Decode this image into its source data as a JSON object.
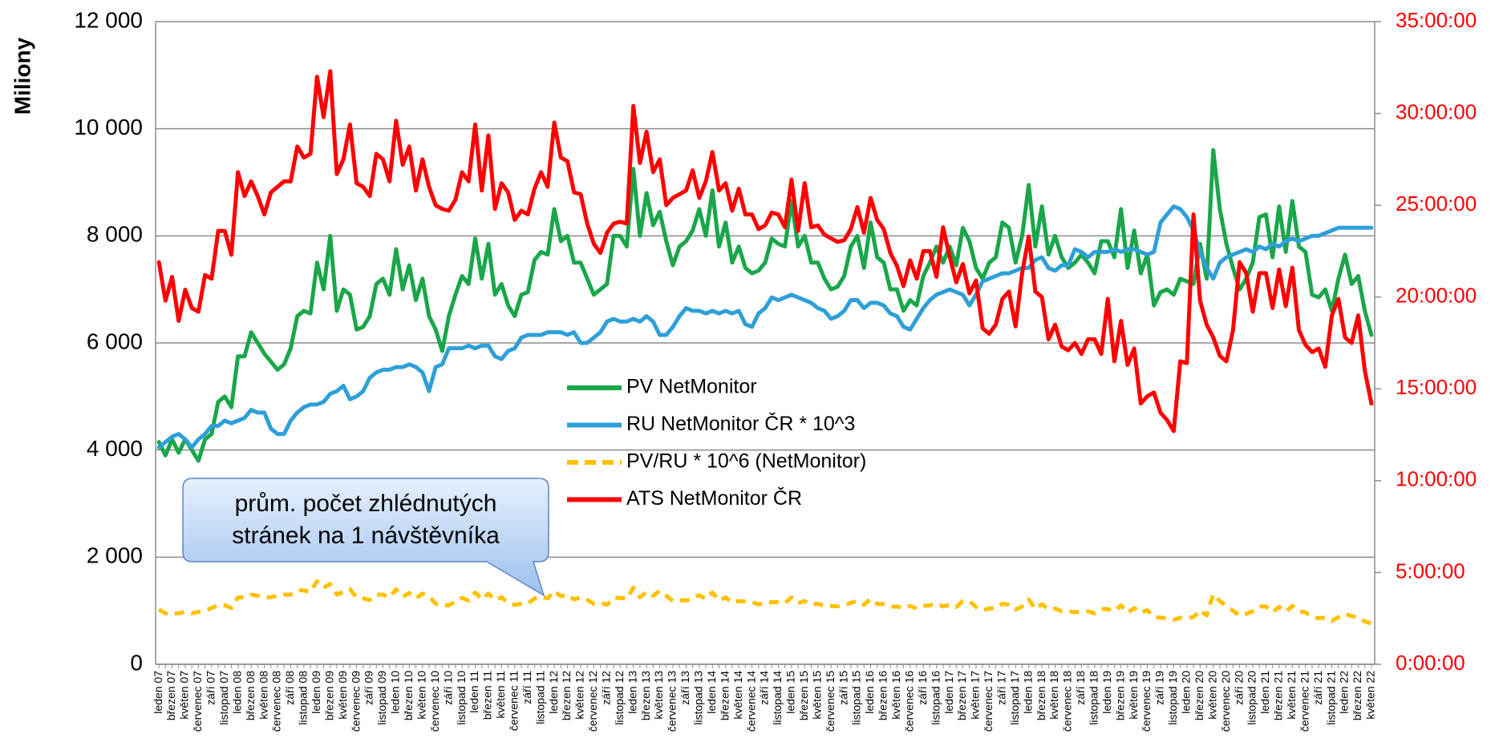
{
  "chart_data": {
    "type": "line",
    "ylabel": "Miliony",
    "ylim": [
      0,
      12000
    ],
    "yticks": [
      0,
      {
        "value": 2000,
        "label": "2 000"
      },
      {
        "value": 4000,
        "label": "4 000"
      },
      {
        "value": 6000,
        "label": "6 000"
      },
      {
        "value": 8000,
        "label": "8 000"
      },
      {
        "value": 10000,
        "label": "10 000"
      },
      {
        "value": 12000,
        "label": "12 000"
      }
    ],
    "y2lim": [
      0,
      35
    ],
    "y2ticks": [
      {
        "value": 0,
        "label": "0:00:00"
      },
      {
        "value": 5,
        "label": "5:00:00"
      },
      {
        "value": 10,
        "label": "10:00:00"
      },
      {
        "value": 15,
        "label": "15:00:00"
      },
      {
        "value": 20,
        "label": "20:00:00"
      },
      {
        "value": 25,
        "label": "25:00:00"
      },
      {
        "value": 30,
        "label": "30:00:00"
      },
      {
        "value": 35,
        "label": "35:00:00"
      }
    ],
    "grid": true,
    "annotation": [
      "prům. počet zhlédnutých",
      "stránek na 1 návštěvníka"
    ],
    "categories": [
      "leden 07",
      null,
      "březen 07",
      null,
      "květen 07",
      null,
      "červenec 07",
      null,
      "září 07",
      null,
      "listopad 07",
      null,
      "leden 08",
      null,
      "březen 08",
      null,
      "květen 08",
      null,
      "červenec 08",
      null,
      "září 08",
      null,
      "listopad 08",
      null,
      "leden 09",
      null,
      "březen 09",
      null,
      "květen 09",
      null,
      "červenec 09",
      null,
      "září 09",
      null,
      "listopad 09",
      null,
      "leden 10",
      null,
      "březen 10",
      null,
      "květen 10",
      null,
      "červenec 10",
      null,
      "září 10",
      null,
      "listopad 10",
      null,
      "leden 11",
      null,
      "březen 11",
      null,
      "květen 11",
      null,
      "červenec 11",
      null,
      "září 11",
      null,
      "listopad 11",
      null,
      "leden 12",
      null,
      "březen 12",
      null,
      "květen 12",
      null,
      "červenec 12",
      null,
      "září 12",
      null,
      "listopad 12",
      null,
      "leden 13",
      null,
      "březen 13",
      null,
      "květen 13",
      null,
      "červenec 13",
      null,
      "září 13",
      null,
      "listopad 13",
      null,
      "leden 14",
      null,
      "březen 14",
      null,
      "květen 14",
      null,
      "červenec 14",
      null,
      "září 14",
      null,
      "listopad 14",
      null,
      "leden 15",
      null,
      "březen 15",
      null,
      "květen 15",
      null,
      "červenec 15",
      null,
      "září 15",
      null,
      "listopad 15",
      null,
      "leden 16",
      null,
      "březen 16",
      null,
      "květen 16",
      null,
      "červenec 16",
      null,
      "září 16",
      null,
      "listopad 16",
      null,
      "leden 17",
      null,
      "březen 17",
      null,
      "květen 17",
      null,
      "červenec 17",
      null,
      "září 17",
      null,
      "listopad 17",
      null,
      "leden 18",
      null,
      "březen 18",
      null,
      "květen 18",
      null,
      "červenec 18",
      null,
      "září 18",
      null,
      "listopad 18",
      null,
      "leden 19",
      null,
      "březen 19",
      null,
      "květen 19",
      null,
      "červenec 19",
      null,
      "září 19",
      null,
      "listopad 19",
      null,
      "leden 20",
      null,
      "březen 20",
      null,
      "květen 20",
      null,
      "červenec 20",
      null,
      "září 20",
      null,
      "listopad 20",
      null,
      "leden 21",
      null,
      "březen 21",
      null,
      "květen 21",
      null,
      "červenec 21",
      null,
      "září 21",
      null,
      "listopad 21",
      null,
      "leden 22",
      null,
      "březen 22",
      null,
      "květen 22"
    ],
    "series": [
      {
        "name": "PV NetMonitor",
        "color": "#1aa64a",
        "values": [
          4150,
          3900,
          4200,
          3950,
          4200,
          4000,
          3800,
          4200,
          4300,
          4900,
          5000,
          4800,
          5750,
          5750,
          6200,
          6000,
          5800,
          5650,
          5500,
          5600,
          5900,
          6500,
          6600,
          6550,
          7500,
          7000,
          8000,
          6600,
          7000,
          6900,
          6250,
          6300,
          6500,
          7100,
          7200,
          6900,
          7750,
          7000,
          7450,
          6800,
          7200,
          6500,
          6250,
          5850,
          6500,
          6900,
          7250,
          7100,
          7950,
          7200,
          7850,
          6900,
          7100,
          6700,
          6500,
          6900,
          6950,
          7550,
          7700,
          7650,
          8500,
          7900,
          8000,
          7500,
          7500,
          7200,
          6900,
          7000,
          7100,
          8000,
          8000,
          7800,
          9250,
          8000,
          8800,
          8200,
          8450,
          7900,
          7450,
          7800,
          7900,
          8100,
          8500,
          8000,
          8850,
          7800,
          8250,
          7500,
          7800,
          7400,
          7300,
          7350,
          7500,
          7950,
          7850,
          7800,
          8650,
          7800,
          8000,
          7500,
          7500,
          7200,
          7000,
          7050,
          7250,
          7800,
          8000,
          7400,
          8250,
          7600,
          7500,
          7000,
          7000,
          6600,
          6800,
          6700,
          7250,
          7500,
          7800,
          7500,
          7800,
          7450,
          8150,
          7900,
          7400,
          7200,
          7500,
          7600,
          8250,
          8150,
          7500,
          8000,
          8950,
          7800,
          8550,
          7650,
          8000,
          7600,
          7400,
          7500,
          7650,
          7500,
          7300,
          7900,
          7900,
          7600,
          8500,
          7400,
          8100,
          7300,
          7650,
          6700,
          6950,
          7000,
          6900,
          7200,
          7150,
          7100,
          7850,
          7200,
          9600,
          8500,
          7850,
          7400,
          7000,
          7200,
          7500,
          8350,
          8400,
          7600,
          8550,
          7700,
          8650,
          7800,
          7700,
          6900,
          6850,
          7000,
          6600,
          7200,
          7650,
          7100,
          7250,
          6600,
          6150
        ]
      },
      {
        "name": "RU NetMonitor ČR * 10^3",
        "color": "#2e9fd8",
        "values": [
          4050,
          4150,
          4250,
          4300,
          4200,
          4050,
          4200,
          4300,
          4450,
          4450,
          4550,
          4500,
          4550,
          4600,
          4750,
          4700,
          4700,
          4400,
          4300,
          4300,
          4550,
          4700,
          4800,
          4850,
          4850,
          4900,
          5050,
          5100,
          5200,
          4950,
          5000,
          5100,
          5350,
          5450,
          5500,
          5500,
          5550,
          5550,
          5600,
          5550,
          5450,
          5100,
          5550,
          5600,
          5900,
          5900,
          5900,
          5950,
          5900,
          5950,
          5950,
          5750,
          5700,
          5850,
          5900,
          6100,
          6150,
          6150,
          6150,
          6200,
          6200,
          6200,
          6150,
          6200,
          6000,
          6000,
          6100,
          6200,
          6400,
          6450,
          6400,
          6400,
          6450,
          6400,
          6500,
          6400,
          6150,
          6150,
          6300,
          6500,
          6650,
          6600,
          6600,
          6550,
          6600,
          6550,
          6600,
          6550,
          6600,
          6350,
          6300,
          6550,
          6650,
          6850,
          6800,
          6850,
          6900,
          6850,
          6800,
          6750,
          6650,
          6600,
          6450,
          6500,
          6600,
          6800,
          6800,
          6650,
          6750,
          6750,
          6700,
          6550,
          6500,
          6300,
          6250,
          6450,
          6650,
          6800,
          6900,
          6950,
          7000,
          6950,
          6900,
          6700,
          6900,
          7150,
          7200,
          7250,
          7300,
          7300,
          7350,
          7400,
          7400,
          7550,
          7600,
          7400,
          7350,
          7450,
          7450,
          7750,
          7700,
          7600,
          7700,
          7700,
          7700,
          7750,
          7700,
          7750,
          7750,
          7700,
          7650,
          7700,
          8250,
          8400,
          8550,
          8500,
          8350,
          8100,
          7700,
          7400,
          7200,
          7500,
          7600,
          7650,
          7700,
          7750,
          7700,
          7800,
          7750,
          7850,
          7800,
          7900,
          7950,
          7900,
          7950,
          8000,
          8000,
          8050,
          8100,
          8150,
          8150,
          8150,
          8150,
          8150,
          8150
        ]
      },
      {
        "name": "PV/RU * 10^6 (NetMonitor)",
        "color": "#ffc000",
        "dashed": true,
        "values": [
          1020,
          950,
          950,
          950,
          980,
          950,
          980,
          1000,
          1050,
          1100,
          1100,
          1050,
          1250,
          1250,
          1300,
          1280,
          1250,
          1250,
          1280,
          1300,
          1300,
          1380,
          1380,
          1350,
          1550,
          1430,
          1500,
          1300,
          1350,
          1400,
          1250,
          1230,
          1200,
          1300,
          1300,
          1250,
          1400,
          1260,
          1330,
          1230,
          1320,
          1270,
          1130,
          1100,
          1100,
          1170,
          1240,
          1190,
          1340,
          1210,
          1320,
          1200,
          1250,
          1150,
          1110,
          1130,
          1130,
          1230,
          1260,
          1230,
          1370,
          1270,
          1300,
          1210,
          1250,
          1200,
          1130,
          1150,
          1110,
          1240,
          1240,
          1220,
          1430,
          1250,
          1350,
          1280,
          1370,
          1280,
          1180,
          1200,
          1190,
          1230,
          1290,
          1220,
          1340,
          1190,
          1250,
          1150,
          1180,
          1170,
          1160,
          1120,
          1130,
          1160,
          1160,
          1140,
          1250,
          1140,
          1180,
          1110,
          1130,
          1090,
          1090,
          1080,
          1100,
          1150,
          1180,
          1110,
          1220,
          1130,
          1120,
          1070,
          1080,
          1050,
          1090,
          1040,
          1090,
          1100,
          1130,
          1080,
          1110,
          1070,
          1180,
          1180,
          1070,
          1010,
          1040,
          1050,
          1130,
          1110,
          1020,
          1080,
          1210,
          1030,
          1120,
          1030,
          1040,
          990,
          990,
          970,
          990,
          990,
          950,
          1030,
          1030,
          990,
          1100,
          960,
          1050,
          960,
          1010,
          880,
          870,
          860,
          830,
          870,
          870,
          880,
          1010,
          910,
          1310,
          1180,
          1090,
          1000,
          910,
          940,
          990,
          1080,
          1080,
          970,
          1070,
          980,
          1090,
          990,
          970,
          880,
          860,
          870,
          810,
          880,
          940,
          900,
          870,
          800,
          760
        ]
      },
      {
        "name": "ATS NetMonitor ČR",
        "color": "#ff0000",
        "axis": "y2",
        "values": [
          21.9,
          19.8,
          21.1,
          18.7,
          20.4,
          19.4,
          19.2,
          21.2,
          21.0,
          23.6,
          23.6,
          22.3,
          26.8,
          25.5,
          26.3,
          25.5,
          24.5,
          25.7,
          26.0,
          26.3,
          26.3,
          28.2,
          27.6,
          27.8,
          32.0,
          29.8,
          32.3,
          26.7,
          27.5,
          29.4,
          26.2,
          26.0,
          25.5,
          27.8,
          27.5,
          26.3,
          29.6,
          27.2,
          28.2,
          25.8,
          27.5,
          26.0,
          25.0,
          24.8,
          24.7,
          25.3,
          26.8,
          26.3,
          29.4,
          25.8,
          28.8,
          24.8,
          26.2,
          25.7,
          24.2,
          24.7,
          24.5,
          25.9,
          26.8,
          26.0,
          29.5,
          27.6,
          27.4,
          25.7,
          25.6,
          24.0,
          22.9,
          22.4,
          23.5,
          24.0,
          24.1,
          24.0,
          30.4,
          27.3,
          29.0,
          26.8,
          27.5,
          25.0,
          25.4,
          25.6,
          25.8,
          26.9,
          25.4,
          26.3,
          27.9,
          25.8,
          26.2,
          24.7,
          25.9,
          24.5,
          24.5,
          23.7,
          23.9,
          24.6,
          24.5,
          23.8,
          26.4,
          23.6,
          26.2,
          23.8,
          23.9,
          23.4,
          23.2,
          23.0,
          23.1,
          23.7,
          24.9,
          23.5,
          25.4,
          24.2,
          23.7,
          22.4,
          21.7,
          20.6,
          22.0,
          21.0,
          22.5,
          22.5,
          21.1,
          23.8,
          22.2,
          20.8,
          21.8,
          20.2,
          20.9,
          18.3,
          18.0,
          18.5,
          19.9,
          20.3,
          18.4,
          21.3,
          23.3,
          20.3,
          20.0,
          17.7,
          18.5,
          17.3,
          17.1,
          17.5,
          16.9,
          17.7,
          17.7,
          16.9,
          19.9,
          16.5,
          18.7,
          16.3,
          17.2,
          14.2,
          14.6,
          14.8,
          13.7,
          13.3,
          12.7,
          16.5,
          16.4,
          24.5,
          19.8,
          18.5,
          17.8,
          16.8,
          16.5,
          18.2,
          21.9,
          21.3,
          19.2,
          21.3,
          21.3,
          19.4,
          21.5,
          19.5,
          21.6,
          18.2,
          17.4,
          17.0,
          17.2,
          16.2,
          19.0,
          19.9,
          17.8,
          17.5,
          19.0,
          16.0,
          14.2
        ]
      }
    ]
  }
}
